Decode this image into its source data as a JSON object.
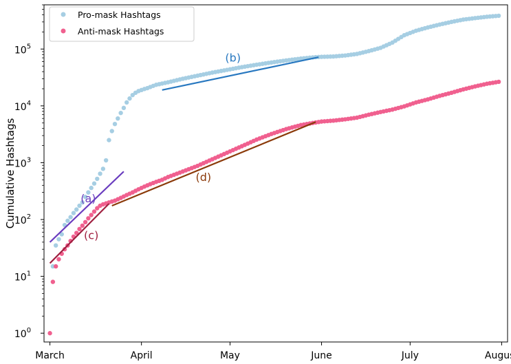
{
  "chart_data": {
    "type": "scatter",
    "ylabel": "Cumulative Hashtags",
    "xlabel": "",
    "yscale": "log",
    "ylim": [
      0.7,
      600000
    ],
    "xlim": [
      -2,
      155
    ],
    "grid": false,
    "legend_position": "top-left",
    "x_ticks": [
      {
        "label": "March",
        "day": 0
      },
      {
        "label": "April",
        "day": 31
      },
      {
        "label": "May",
        "day": 61
      },
      {
        "label": "June",
        "day": 92
      },
      {
        "label": "July",
        "day": 122
      },
      {
        "label": "August",
        "day": 153
      }
    ],
    "y_ticks": [
      {
        "base": "10",
        "exp": "0",
        "value": 1
      },
      {
        "base": "10",
        "exp": "1",
        "value": 10
      },
      {
        "base": "10",
        "exp": "2",
        "value": 100
      },
      {
        "base": "10",
        "exp": "3",
        "value": 1000
      },
      {
        "base": "10",
        "exp": "4",
        "value": 10000
      },
      {
        "base": "10",
        "exp": "5",
        "value": 100000
      }
    ],
    "series": [
      {
        "name": "Pro-mask Hashtags",
        "color": "#a6cee3",
        "x": [
          1,
          2,
          3,
          4,
          5,
          6,
          7,
          8,
          9,
          10,
          11,
          12,
          13,
          14,
          15,
          16,
          17,
          18,
          19,
          20,
          21,
          22,
          23,
          24,
          25,
          26,
          27,
          28,
          29,
          30,
          31,
          32,
          33,
          34,
          35,
          36,
          40,
          45,
          50,
          55,
          60,
          65,
          70,
          75,
          80,
          85,
          90,
          92,
          96,
          100,
          104,
          108,
          112,
          116,
          120,
          124,
          128,
          132,
          136,
          140,
          144,
          148,
          152
        ],
        "y": [
          15,
          35,
          45,
          55,
          80,
          95,
          110,
          130,
          150,
          175,
          200,
          250,
          300,
          360,
          430,
          520,
          640,
          780,
          1100,
          2500,
          3600,
          4800,
          6000,
          7500,
          9200,
          11500,
          13500,
          15500,
          17000,
          18200,
          19000,
          19800,
          20500,
          21500,
          22500,
          23500,
          26000,
          30000,
          34000,
          38500,
          43000,
          48000,
          53000,
          58000,
          63000,
          68000,
          72000,
          73000,
          74000,
          77000,
          82000,
          92000,
          105000,
          130000,
          175000,
          210000,
          240000,
          270000,
          300000,
          330000,
          350000,
          370000,
          385000
        ]
      },
      {
        "name": "Anti-mask Hashtags",
        "color": "#f0608f",
        "x": [
          0,
          1,
          2,
          3,
          4,
          5,
          6,
          7,
          8,
          9,
          10,
          11,
          12,
          13,
          14,
          15,
          16,
          17,
          18,
          19,
          20,
          22,
          24,
          26,
          28,
          30,
          32,
          34,
          36,
          38,
          40,
          45,
          50,
          55,
          60,
          65,
          70,
          75,
          80,
          85,
          90,
          92,
          96,
          100,
          104,
          108,
          112,
          116,
          120,
          124,
          128,
          132,
          136,
          140,
          144,
          148,
          152
        ],
        "y": [
          1,
          8,
          15,
          20,
          25,
          30,
          35,
          42,
          50,
          58,
          68,
          78,
          90,
          105,
          120,
          138,
          158,
          175,
          185,
          192,
          200,
          215,
          240,
          270,
          300,
          340,
          380,
          420,
          460,
          500,
          560,
          700,
          880,
          1150,
          1500,
          1950,
          2550,
          3200,
          3900,
          4600,
          5100,
          5300,
          5500,
          5800,
          6200,
          7000,
          7800,
          8600,
          9800,
          11500,
          13000,
          15000,
          17000,
          19500,
          22000,
          24500,
          26500
        ]
      }
    ],
    "fit_lines": [
      {
        "label": "(a)",
        "color": "#6a3dbf",
        "x": [
          0,
          25
        ],
        "y": [
          40,
          700
        ],
        "label_x": 13,
        "label_y": 200
      },
      {
        "label": "(b)",
        "color": "#2878c0",
        "x": [
          38,
          91
        ],
        "y": [
          19000,
          72000
        ],
        "label_x": 62,
        "label_y": 60000
      },
      {
        "label": "(c)",
        "color": "#a02040",
        "x": [
          0,
          20
        ],
        "y": [
          17,
          190
        ],
        "label_x": 14,
        "label_y": 45
      },
      {
        "label": "(d)",
        "color": "#8b3a0a",
        "x": [
          21,
          90
        ],
        "y": [
          175,
          5200
        ],
        "label_x": 52,
        "label_y": 480
      }
    ]
  }
}
